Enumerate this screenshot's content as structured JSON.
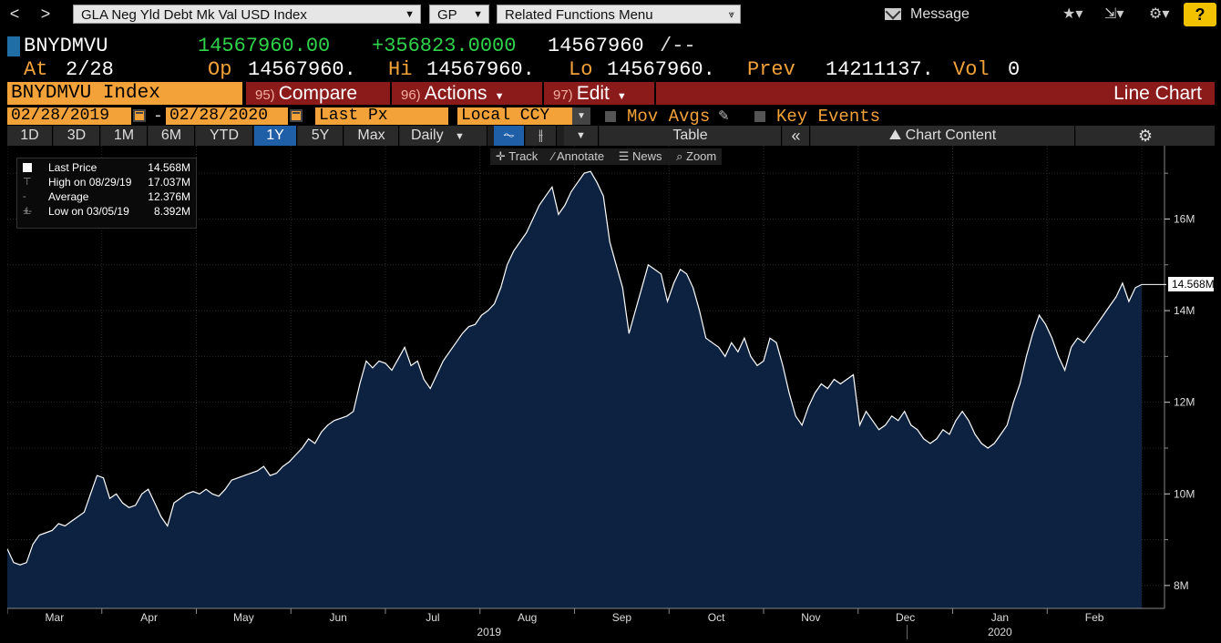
{
  "nav": {
    "back": "<",
    "forward": ">",
    "security_menu": "GLA Neg Yld Debt Mk Val USD Index",
    "function_menu": "GP",
    "related_menu": "Related Functions Menu",
    "message": "Message",
    "help": "?"
  },
  "quote": {
    "ticker": "BNYDMVU",
    "last": "14567960.00",
    "change": "+356823.0000",
    "bid": "14567960",
    "ask": "/--",
    "at_label": "At",
    "at_value": "2/28",
    "op_label": "Op",
    "op_value": "14567960.",
    "hi_label": "Hi",
    "hi_value": "14567960.",
    "lo_label": "Lo",
    "lo_value": "14567960.",
    "prev_label": "Prev",
    "prev_value": "14211137.",
    "vol_label": "Vol",
    "vol_value": "0"
  },
  "function_bar": {
    "index": "BNYDMVU Index",
    "compare_num": "95)",
    "compare": "Compare",
    "actions_num": "96)",
    "actions": "Actions",
    "edit_num": "97)",
    "edit": "Edit",
    "chart_type": "Line Chart"
  },
  "settings": {
    "start_date": "02/28/2019",
    "end_date": "02/28/2020",
    "dash": "-",
    "field": "Last Px",
    "currency": "Local CCY",
    "mov_avgs": "Mov Avgs",
    "key_events": "Key Events"
  },
  "toolbar": {
    "ranges": [
      "1D",
      "3D",
      "1M",
      "6M",
      "YTD",
      "1Y",
      "5Y",
      "Max"
    ],
    "active_range": "1Y",
    "frequency": "Daily",
    "table": "Table",
    "chart_content": "Chart Content"
  },
  "chart_tools": {
    "track": "Track",
    "annotate": "Annotate",
    "news": "News",
    "zoom": "Zoom"
  },
  "legend": {
    "last_price_label": "Last Price",
    "last_price_value": "14.568M",
    "high_label": "High on 08/29/19",
    "high_value": "17.037M",
    "average_label": "Average",
    "average_value": "12.376M",
    "low_label": "Low on 03/05/19",
    "low_value": "8.392M"
  },
  "colors": {
    "accent_orange": "#f3a23a",
    "function_red": "#8b1a1a",
    "positive_green": "#2fd34a",
    "active_blue": "#1e5fa8",
    "area_fill": "#0d2240",
    "line": "#ffffff"
  },
  "chart_data": {
    "type": "area",
    "title": "",
    "xlabel": "",
    "ylabel": "",
    "ylim": [
      7.5,
      17.6
    ],
    "y_ticks": [
      "16M",
      "14M",
      "12M",
      "10M",
      "8M"
    ],
    "y_tick_values": [
      16,
      14,
      12,
      10,
      8
    ],
    "x_tick_labels": [
      "Mar",
      "Apr",
      "May",
      "Jun",
      "Jul",
      "Aug",
      "Sep",
      "Oct",
      "Nov",
      "Dec",
      "Jan",
      "Feb"
    ],
    "year_labels": [
      "2019",
      "2020"
    ],
    "last_value_label": "14.568M",
    "series": [
      {
        "name": "Last Price",
        "unit": "M",
        "values": [
          8.8,
          8.5,
          8.45,
          8.5,
          8.9,
          9.1,
          9.15,
          9.2,
          9.35,
          9.3,
          9.4,
          9.5,
          9.6,
          10.0,
          10.4,
          10.35,
          9.9,
          10.0,
          9.8,
          9.7,
          9.75,
          10.0,
          10.1,
          9.8,
          9.5,
          9.3,
          9.8,
          9.9,
          10.0,
          10.05,
          10.0,
          10.1,
          10.0,
          9.95,
          10.1,
          10.3,
          10.35,
          10.4,
          10.45,
          10.5,
          10.6,
          10.4,
          10.45,
          10.6,
          10.7,
          10.85,
          11.0,
          11.2,
          11.1,
          11.35,
          11.5,
          11.6,
          11.65,
          11.7,
          11.8,
          12.4,
          12.9,
          12.75,
          12.9,
          12.85,
          12.7,
          12.95,
          13.2,
          12.8,
          12.9,
          12.5,
          12.3,
          12.6,
          12.9,
          13.1,
          13.3,
          13.5,
          13.65,
          13.7,
          13.9,
          14.0,
          14.15,
          14.5,
          15.0,
          15.3,
          15.5,
          15.7,
          16.0,
          16.3,
          16.5,
          16.7,
          16.1,
          16.3,
          16.6,
          16.8,
          17.0,
          17.04,
          16.8,
          16.5,
          15.5,
          15.0,
          14.5,
          13.5,
          14.0,
          14.5,
          15.0,
          14.9,
          14.8,
          14.2,
          14.6,
          14.9,
          14.8,
          14.5,
          14.0,
          13.4,
          13.3,
          13.2,
          13.0,
          13.3,
          13.1,
          13.4,
          13.0,
          12.8,
          12.9,
          13.4,
          13.3,
          12.8,
          12.2,
          11.7,
          11.5,
          11.9,
          12.2,
          12.4,
          12.3,
          12.5,
          12.4,
          12.5,
          12.6,
          11.5,
          11.8,
          11.6,
          11.4,
          11.5,
          11.7,
          11.6,
          11.8,
          11.5,
          11.4,
          11.2,
          11.1,
          11.2,
          11.4,
          11.3,
          11.6,
          11.8,
          11.6,
          11.3,
          11.1,
          11.0,
          11.1,
          11.3,
          11.5,
          12.0,
          12.4,
          13.0,
          13.5,
          13.9,
          13.7,
          13.4,
          13.0,
          12.7,
          13.2,
          13.4,
          13.3,
          13.5,
          13.7,
          13.9,
          14.1,
          14.3,
          14.6,
          14.2,
          14.5,
          14.57
        ]
      }
    ]
  }
}
